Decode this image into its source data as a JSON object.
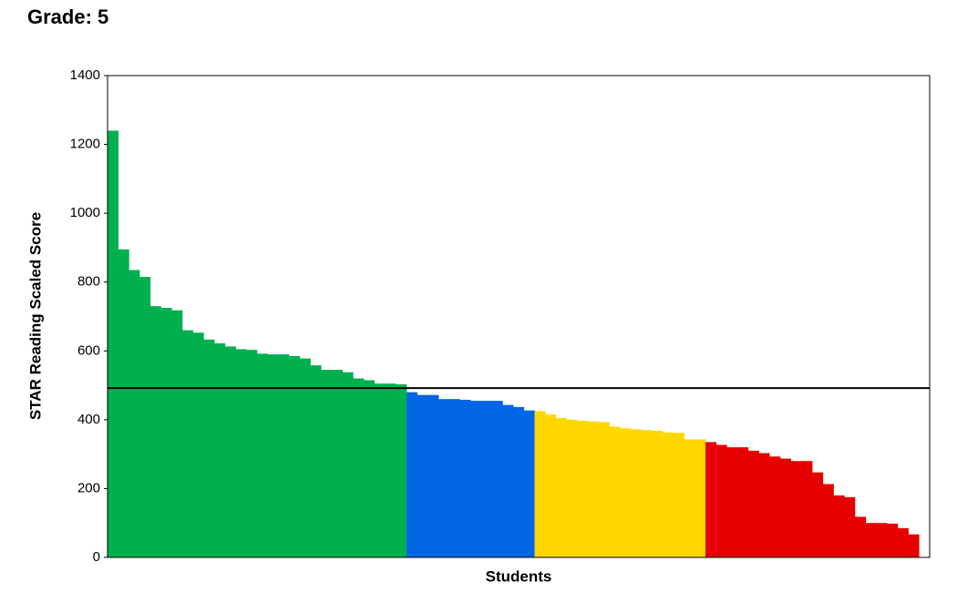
{
  "chart_data": {
    "type": "bar",
    "title": "Grade: 5",
    "y_label": "STAR Reading Scaled Score",
    "x_label": "Students",
    "values": [
      1240,
      895,
      835,
      815,
      730,
      725,
      718,
      660,
      653,
      633,
      622,
      613,
      605,
      603,
      592,
      590,
      590,
      585,
      578,
      558,
      545,
      545,
      538,
      520,
      515,
      505,
      505,
      503,
      480,
      472,
      472,
      460,
      460,
      458,
      455,
      455,
      455,
      443,
      437,
      427,
      425,
      415,
      405,
      400,
      397,
      395,
      393,
      380,
      375,
      372,
      370,
      368,
      363,
      362,
      343,
      343,
      335,
      327,
      320,
      320,
      310,
      303,
      293,
      287,
      280,
      280,
      247,
      213,
      180,
      175,
      118,
      100,
      100,
      98,
      85,
      67
    ],
    "bar_colors": [
      "#00b04f",
      "#00b04f",
      "#00b04f",
      "#00b04f",
      "#00b04f",
      "#00b04f",
      "#00b04f",
      "#00b04f",
      "#00b04f",
      "#00b04f",
      "#00b04f",
      "#00b04f",
      "#00b04f",
      "#00b04f",
      "#00b04f",
      "#00b04f",
      "#00b04f",
      "#00b04f",
      "#00b04f",
      "#00b04f",
      "#00b04f",
      "#00b04f",
      "#00b04f",
      "#00b04f",
      "#00b04f",
      "#00b04f",
      "#00b04f",
      "#00b04f",
      "#0066e6",
      "#0066e6",
      "#0066e6",
      "#0066e6",
      "#0066e6",
      "#0066e6",
      "#0066e6",
      "#0066e6",
      "#0066e6",
      "#0066e6",
      "#0066e6",
      "#0066e6",
      "#ffd700",
      "#ffd700",
      "#ffd700",
      "#ffd700",
      "#ffd700",
      "#ffd700",
      "#ffd700",
      "#ffd700",
      "#ffd700",
      "#ffd700",
      "#ffd700",
      "#ffd700",
      "#ffd700",
      "#ffd700",
      "#ffd700",
      "#ffd700",
      "#e60000",
      "#e60000",
      "#e60000",
      "#e60000",
      "#e60000",
      "#e60000",
      "#e60000",
      "#e60000",
      "#e60000",
      "#e60000",
      "#e60000",
      "#e60000",
      "#e60000",
      "#e60000",
      "#e60000",
      "#e60000",
      "#e60000",
      "#e60000",
      "#e60000",
      "#e60000"
    ],
    "reference_line": 492,
    "ylim": [
      0,
      1400
    ],
    "yticks": [
      0,
      200,
      400,
      600,
      800,
      1000,
      1200,
      1400
    ],
    "grid": false
  }
}
